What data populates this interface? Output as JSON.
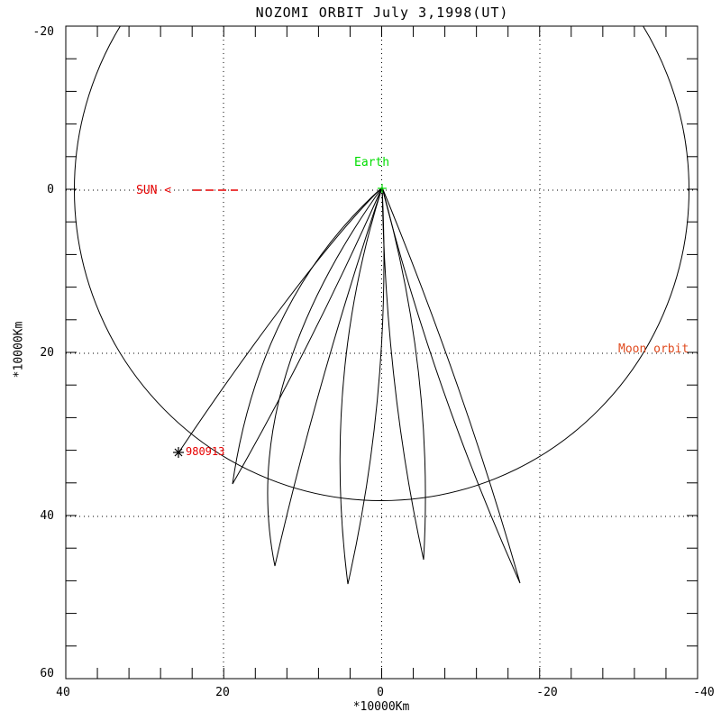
{
  "window": {
    "title": "NOZOMI ORBIT July 3,1998(UT)"
  },
  "axes": {
    "x": {
      "label": "*10000Km",
      "tick_labels": [
        "40",
        "20",
        "0",
        "-20",
        "-40"
      ]
    },
    "y": {
      "label": "*10000Km",
      "tick_labels": [
        "-20",
        "0",
        "20",
        "40",
        "60"
      ]
    }
  },
  "annotations": {
    "sun_label": "SUN <",
    "earth_label": "Earth",
    "moon_orbit_label": "Moon orbit",
    "marker_date_label": "980913"
  },
  "colors": {
    "annotation_red": "#e60000",
    "earth_green": "#00dd00",
    "moon_orange": "#e04a1e",
    "trajectory_black": "#000000"
  },
  "chart_data": {
    "type": "line",
    "title": "NOZOMI ORBIT July 3,1998(UT)",
    "xlabel": "*10000Km",
    "ylabel": "*10000Km",
    "xlim": [
      40,
      -40
    ],
    "ylim": [
      60,
      -20
    ],
    "x_ticks": [
      40,
      20,
      0,
      -20,
      -40
    ],
    "y_ticks": [
      -20,
      0,
      20,
      40,
      60
    ],
    "minor_tick_interval": 4,
    "grid": "dotted lines at major ticks",
    "legend_position": "none",
    "earth": {
      "label": "Earth",
      "x": 0,
      "y": 0,
      "marker": "plus"
    },
    "sun_direction": {
      "label": "SUN <",
      "arrow": "dashed toward +x",
      "x": 30,
      "y": 0
    },
    "moon_orbit": {
      "label": "Moon orbit",
      "shape": "circle",
      "center": [
        0,
        0
      ],
      "radius": 38.5
    },
    "spacecraft_marker": {
      "label": "980913",
      "symbol": "asterisk",
      "x": 25.7,
      "y": 32.2
    },
    "series": [
      {
        "name": "phasing-orbit petal apogees (from Earth)",
        "points": [
          {
            "x": 18.9,
            "y": 36.0
          },
          {
            "x": 13.5,
            "y": 46.1
          },
          {
            "x": 4.3,
            "y": 48.3
          },
          {
            "x": -5.3,
            "y": 45.3
          },
          {
            "x": -17.5,
            "y": 48.2
          }
        ]
      },
      {
        "name": "final leg endpoint",
        "points": [
          {
            "x": 25.7,
            "y": 32.2
          }
        ]
      }
    ]
  }
}
